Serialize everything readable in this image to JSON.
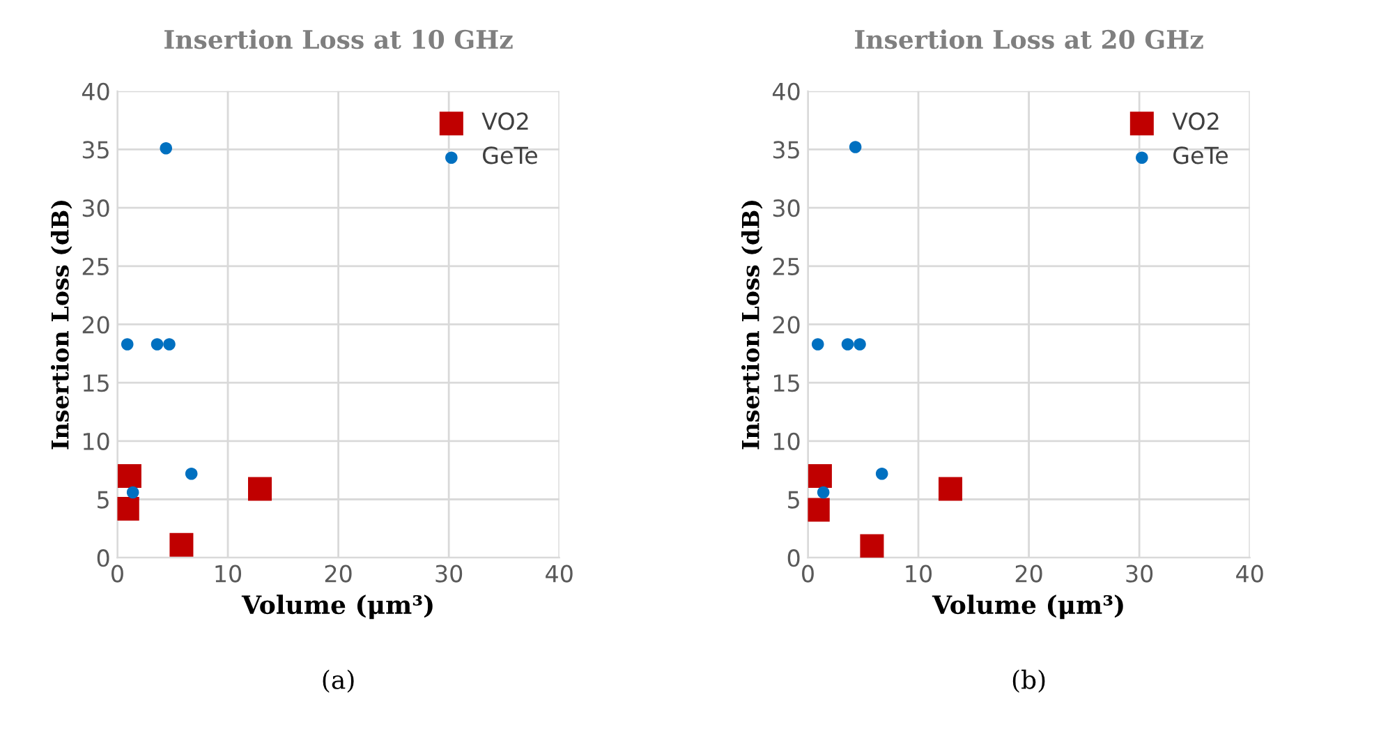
{
  "chart_data": [
    {
      "type": "scatter",
      "title": "Insertion Loss at 10 GHz",
      "xlabel": "Volume (μm³)",
      "ylabel": "Insertion Loss (dB)",
      "xlim": [
        0,
        40
      ],
      "ylim": [
        0,
        40
      ],
      "xticks": [
        0,
        10,
        20,
        30,
        40
      ],
      "yticks": [
        0,
        5,
        10,
        15,
        20,
        25,
        30,
        35,
        40
      ],
      "grid": true,
      "legend": "top right",
      "annotations": [
        "(a)"
      ],
      "series": [
        {
          "name": "VO2",
          "color": "#c00000",
          "marker": "square",
          "x": [
            1.1,
            0.9,
            5.8,
            12.9
          ],
          "values": [
            7.0,
            4.2,
            1.1,
            5.9
          ]
        },
        {
          "name": "GeTe",
          "color": "#0070c0",
          "marker": "circle",
          "x": [
            4.4,
            0.9,
            3.6,
            4.7,
            6.7,
            1.4
          ],
          "values": [
            35.1,
            18.3,
            18.3,
            18.3,
            7.2,
            5.6
          ]
        }
      ]
    },
    {
      "type": "scatter",
      "title": "Insertion Loss at 20 GHz",
      "xlabel": "Volume (μm³)",
      "ylabel": "Insertion Loss (dB)",
      "xlim": [
        0,
        40
      ],
      "ylim": [
        0,
        40
      ],
      "xticks": [
        0,
        10,
        20,
        30,
        40
      ],
      "yticks": [
        0,
        5,
        10,
        15,
        20,
        25,
        30,
        35,
        40
      ],
      "grid": true,
      "legend": "top right",
      "annotations": [
        "(b)"
      ],
      "series": [
        {
          "name": "VO2",
          "color": "#c00000",
          "marker": "square",
          "x": [
            1.1,
            0.9,
            5.8,
            12.9
          ],
          "values": [
            7.0,
            4.1,
            1.0,
            5.9
          ]
        },
        {
          "name": "GeTe",
          "color": "#0070c0",
          "marker": "circle",
          "x": [
            4.3,
            0.9,
            3.6,
            4.7,
            6.7,
            1.4
          ],
          "values": [
            35.2,
            18.3,
            18.3,
            18.3,
            7.2,
            5.6
          ]
        }
      ]
    }
  ]
}
